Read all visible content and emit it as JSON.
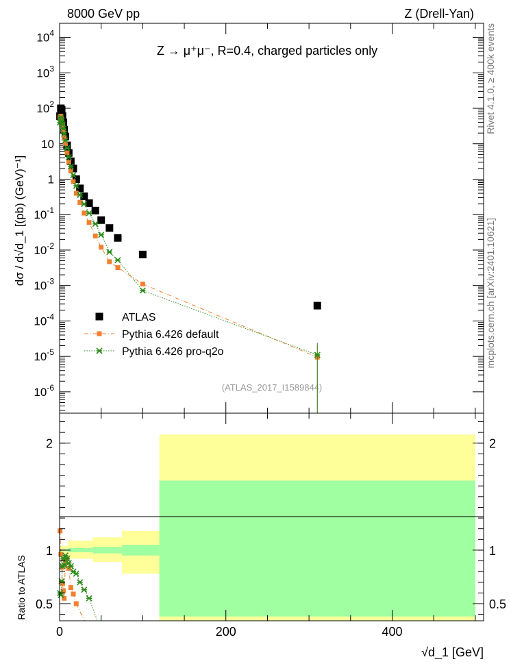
{
  "header": {
    "left": "8000 GeV pp",
    "right": "Z (Drell-Yan)"
  },
  "side_labels": {
    "rivet": "Rivet 4.1.0, ≥ 400k events",
    "mcplots": "mcplots.cern.ch [arXiv:2401.10621]"
  },
  "plot_title": "Z → μ⁺μ⁻, R=0.4, charged particles only",
  "analysis_label": "(ATLAS_2017_I1589844)",
  "ylabel_main": "dσ / d√d_1 [(pb) (GeV)⁻¹]",
  "ylabel_ratio": "Ratio to ATLAS",
  "xlabel": "√d_1 [GeV]",
  "colors": {
    "atlas": "#000000",
    "pythia_default": "#f08030",
    "pythia_proq2o": "#2a8a1a",
    "band_stat": "#a0ffa0",
    "band_total": "#ffff99"
  },
  "chart_data": [
    {
      "type": "scatter",
      "panel": "main",
      "yscale": "log",
      "xlim": [
        0,
        510
      ],
      "ylim": [
        2.5e-07,
        25000.0
      ],
      "x_ticks": [
        0,
        200,
        400
      ],
      "y_ticks": [
        1e-06,
        1e-05,
        0.0001,
        0.001,
        0.01,
        0.1,
        1,
        10,
        100,
        1000,
        10000
      ],
      "legend": {
        "placement": "lower-left",
        "entries": [
          "ATLAS",
          "Pythia 6.426 default",
          "Pythia 6.426 pro-q2o"
        ]
      },
      "series": [
        {
          "name": "ATLAS",
          "x": [
            0.5,
            1.5,
            2.5,
            3.5,
            4.5,
            5.5,
            7,
            9,
            11,
            13.5,
            16.5,
            20,
            24.5,
            29.5,
            35.5,
            43,
            50,
            60,
            70,
            100,
            310
          ],
          "y": [
            60,
            100,
            90,
            60,
            40,
            25,
            16,
            9,
            5.5,
            3.2,
            2.0,
            1.0,
            0.55,
            0.33,
            0.21,
            0.13,
            0.07,
            0.042,
            0.022,
            0.0075,
            0.00027
          ]
        },
        {
          "name": "Pythia 6.426 default",
          "x": [
            0.5,
            1.5,
            2.5,
            3.5,
            4.5,
            5.5,
            7,
            9,
            11,
            13.5,
            16.5,
            20,
            24.5,
            29.5,
            35.5,
            43,
            50,
            60,
            70,
            100,
            310
          ],
          "y": [
            58,
            60,
            50,
            33,
            24,
            15,
            10,
            5.5,
            3.0,
            1.7,
            0.85,
            0.4,
            0.22,
            0.11,
            0.06,
            0.025,
            0.012,
            0.0047,
            0.0032,
            0.0011,
            9.5e-06
          ]
        },
        {
          "name": "Pythia 6.426 pro-q2o",
          "x": [
            0.5,
            1.5,
            2.5,
            3.5,
            4.5,
            5.5,
            7,
            9,
            11,
            13.5,
            16.5,
            20,
            24.5,
            29.5,
            35.5,
            43,
            50,
            60,
            70,
            100,
            310
          ],
          "y": [
            40,
            55,
            45,
            35,
            27,
            19,
            12.5,
            7.5,
            4.2,
            2.3,
            1.3,
            0.65,
            0.36,
            0.2,
            0.11,
            0.055,
            0.027,
            0.0088,
            0.0052,
            0.00072,
            1.1e-05
          ]
        }
      ]
    },
    {
      "type": "scatter",
      "panel": "ratio",
      "xlim": [
        0,
        510
      ],
      "ylim": [
        0.34,
        2.28
      ],
      "x_ticks": [
        0,
        200,
        400
      ],
      "y_ticks": [
        0.5,
        1,
        2
      ],
      "bands": [
        {
          "name": "total",
          "edges": [
            0,
            10,
            40,
            75,
            120,
            500
          ],
          "lo": [
            0.96,
            0.92,
            0.89,
            0.78,
            0.0
          ],
          "hi": [
            1.04,
            1.09,
            1.12,
            1.18,
            2.08
          ]
        },
        {
          "name": "stat",
          "edges": [
            0,
            10,
            40,
            75,
            120,
            500
          ],
          "lo": [
            0.99,
            0.98,
            0.97,
            0.95,
            0.38
          ],
          "hi": [
            1.01,
            1.02,
            1.03,
            1.05,
            1.65
          ]
        }
      ],
      "series": [
        {
          "name": "Pythia 6.426 default",
          "x": [
            0.5,
            1.5,
            2.5,
            3.5,
            4.5,
            5.5,
            7,
            9,
            11,
            13.5,
            16.5,
            20
          ],
          "y": [
            1.18,
            0.96,
            0.84,
            0.69,
            0.62,
            0.55,
            0.89,
            0.92,
            0.83,
            0.65,
            0.59,
            0.5
          ]
        },
        {
          "name": "Pythia 6.426 pro-q2o",
          "x": [
            0.5,
            1.5,
            2.5,
            3.5,
            4.5,
            5.5,
            7,
            9,
            11,
            13.5,
            16.5,
            20,
            24.5,
            29.5,
            35.5
          ],
          "y": [
            0.6,
            0.58,
            0.71,
            0.85,
            0.92,
            0.86,
            0.95,
            0.92,
            0.88,
            0.85,
            0.8,
            0.78,
            0.7,
            0.63,
            0.55
          ]
        }
      ]
    }
  ]
}
